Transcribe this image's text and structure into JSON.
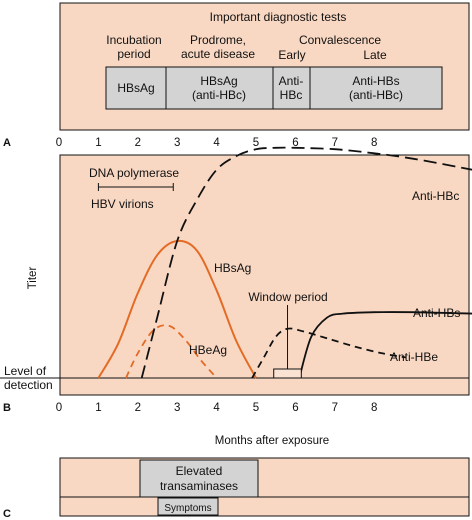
{
  "colors": {
    "background": "#f9d8c3",
    "box_fill": "#d3d3d3",
    "hbsag_curve": "#e36b26",
    "hbeag_curve": "#e36b26",
    "black_curve": "#111111"
  },
  "panel_a": {
    "letter": "A",
    "title": "Important diagnostic tests",
    "headers": {
      "incubation": [
        "Incubation",
        "period"
      ],
      "prodrome": [
        "Prodrome,",
        "acute disease"
      ],
      "convalescence": "Convalescence",
      "early": "Early",
      "late": "Late"
    },
    "boxes": {
      "incubation": [
        "HBsAg"
      ],
      "prodrome": [
        "HBsAg",
        "(anti-HBc)"
      ],
      "early": [
        "Anti-",
        "HBc"
      ],
      "late": [
        "Anti-HBs",
        "(anti-HBc)"
      ]
    },
    "ticks": [
      "0",
      "1",
      "2",
      "3",
      "4",
      "5",
      "6",
      "7",
      "8"
    ]
  },
  "panel_b": {
    "letter": "B",
    "ylabel": "Titer",
    "xlabel": "Months after exposure",
    "detection_label": [
      "Level of",
      "detection"
    ],
    "dna_label": "DNA polymerase",
    "virions_label": "HBV virions",
    "window_label": "Window period",
    "ticks": [
      "0",
      "1",
      "2",
      "3",
      "4",
      "5",
      "6",
      "7",
      "8"
    ],
    "series_labels": {
      "hbsag": "HBsAg",
      "hbeag": "HBeAg",
      "anti_hbc": "Anti-HBc",
      "anti_hbs": "Anti-HBs",
      "anti_hbe": "Anti-HBe"
    }
  },
  "panel_c": {
    "letter": "C",
    "transaminases": [
      "Elevated",
      "transaminases"
    ],
    "symptoms": "Symptoms"
  },
  "chart_data": {
    "type": "line",
    "xlabel": "Months after exposure",
    "ylabel": "Titer",
    "xlim": [
      0,
      10.5
    ],
    "x_ticks": [
      0,
      1,
      2,
      3,
      4,
      5,
      6,
      7,
      8
    ],
    "series": [
      {
        "name": "HBsAg",
        "style": "solid",
        "color": "#e36b26",
        "x": [
          1.0,
          1.5,
          2.0,
          2.5,
          3.0,
          3.5,
          4.0,
          4.5,
          5.0
        ],
        "y": [
          0.0,
          0.25,
          0.62,
          0.9,
          1.0,
          0.93,
          0.64,
          0.27,
          0.0
        ]
      },
      {
        "name": "HBeAg",
        "style": "dashed",
        "color": "#e36b26",
        "x": [
          1.7,
          2.0,
          2.4,
          2.8,
          3.2,
          3.6,
          4.0
        ],
        "y": [
          0.0,
          0.18,
          0.35,
          0.38,
          0.28,
          0.13,
          0.0
        ]
      },
      {
        "name": "Anti-HBc",
        "style": "dashed",
        "color": "#111111",
        "x": [
          2.1,
          2.5,
          3.0,
          3.5,
          4.0,
          4.5,
          5.0,
          5.5,
          6.0,
          7.0,
          8.0,
          9.0,
          10.5
        ],
        "y": [
          0.0,
          0.45,
          1.0,
          1.3,
          1.52,
          1.62,
          1.67,
          1.68,
          1.68,
          1.67,
          1.64,
          1.6,
          1.52
        ]
      },
      {
        "name": "Anti-HBe",
        "style": "dashed",
        "color": "#111111",
        "x": [
          4.9,
          5.2,
          5.5,
          5.8,
          6.2,
          6.8,
          7.5,
          8.2,
          8.8
        ],
        "y": [
          0.0,
          0.15,
          0.3,
          0.36,
          0.34,
          0.29,
          0.23,
          0.18,
          0.15
        ]
      },
      {
        "name": "Anti-HBs",
        "style": "solid",
        "color": "#111111",
        "x": [
          6.1,
          6.4,
          6.8,
          7.2,
          8.0,
          9.0,
          10.5
        ],
        "y": [
          0.0,
          0.3,
          0.44,
          0.47,
          0.48,
          0.48,
          0.47
        ]
      }
    ],
    "detection_level": 0,
    "window_period": [
      5.45,
      6.15
    ],
    "dna_polymerase_range": [
      1.0,
      2.9
    ]
  }
}
